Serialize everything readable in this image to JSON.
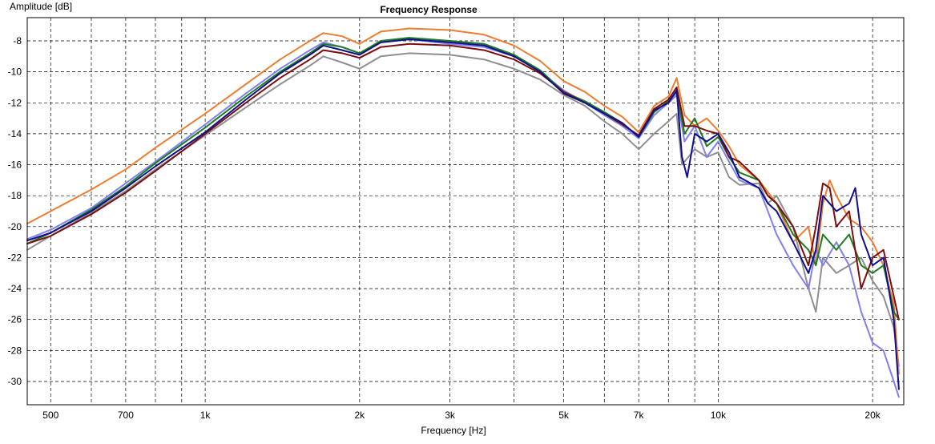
{
  "chart_data": {
    "type": "line",
    "title": "Frequency Response",
    "xlabel": "Frequency [Hz]",
    "ylabel": "Amplitude [dB]",
    "x_scale": "log",
    "xlim": [
      450,
      23000
    ],
    "ylim": [
      -31.5,
      -6.5
    ],
    "x_ticks": [
      {
        "value": 500,
        "label": "500"
      },
      {
        "value": 700,
        "label": "700"
      },
      {
        "value": 1000,
        "label": "1k"
      },
      {
        "value": 2000,
        "label": "2k"
      },
      {
        "value": 3000,
        "label": "3k"
      },
      {
        "value": 5000,
        "label": "5k"
      },
      {
        "value": 7000,
        "label": "7k"
      },
      {
        "value": 10000,
        "label": "10k"
      },
      {
        "value": 20000,
        "label": "20k"
      }
    ],
    "x_grid": [
      500,
      600,
      700,
      800,
      900,
      1000,
      2000,
      3000,
      4000,
      5000,
      6000,
      7000,
      8000,
      9000,
      10000,
      20000
    ],
    "y_ticks": [
      -8,
      -10,
      -12,
      -14,
      -16,
      -18,
      -20,
      -22,
      -24,
      -26,
      -28,
      -30
    ],
    "grid": true,
    "series": [
      {
        "color": "#8f8f8f",
        "points": [
          [
            450,
            -21.5
          ],
          [
            500,
            -20.6
          ],
          [
            600,
            -19.1
          ],
          [
            700,
            -17.7
          ],
          [
            800,
            -16.3
          ],
          [
            1000,
            -14.1
          ],
          [
            1200,
            -12.3
          ],
          [
            1400,
            -10.8
          ],
          [
            1600,
            -9.6
          ],
          [
            1700,
            -9.0
          ],
          [
            1850,
            -9.4
          ],
          [
            2000,
            -9.8
          ],
          [
            2200,
            -9.0
          ],
          [
            2500,
            -8.8
          ],
          [
            3000,
            -8.9
          ],
          [
            3500,
            -9.2
          ],
          [
            4000,
            -9.8
          ],
          [
            4500,
            -10.5
          ],
          [
            5000,
            -11.5
          ],
          [
            5500,
            -12.2
          ],
          [
            6000,
            -13.2
          ],
          [
            6500,
            -14.0
          ],
          [
            7000,
            -15.0
          ],
          [
            7500,
            -14.0
          ],
          [
            8000,
            -13.2
          ],
          [
            8300,
            -12.7
          ],
          [
            8500,
            -16.0
          ],
          [
            9000,
            -15.0
          ],
          [
            9500,
            -15.5
          ],
          [
            10000,
            -15.2
          ],
          [
            10500,
            -16.8
          ],
          [
            11000,
            -17.3
          ],
          [
            12000,
            -17.2
          ],
          [
            12500,
            -18.5
          ],
          [
            13000,
            -18.0
          ],
          [
            14000,
            -20.0
          ],
          [
            15000,
            -24.0
          ],
          [
            15500,
            -25.5
          ],
          [
            16000,
            -22.0
          ],
          [
            17000,
            -23.0
          ],
          [
            18000,
            -22.5
          ],
          [
            19000,
            -22.0
          ],
          [
            20000,
            -23.5
          ],
          [
            21000,
            -24.5
          ],
          [
            22000,
            -26.5
          ],
          [
            22500,
            -29.0
          ]
        ]
      },
      {
        "color": "#ed7d31",
        "points": [
          [
            450,
            -19.8
          ],
          [
            500,
            -19.0
          ],
          [
            600,
            -17.6
          ],
          [
            700,
            -16.3
          ],
          [
            800,
            -14.9
          ],
          [
            1000,
            -12.7
          ],
          [
            1200,
            -10.8
          ],
          [
            1400,
            -9.2
          ],
          [
            1600,
            -8.0
          ],
          [
            1700,
            -7.5
          ],
          [
            1850,
            -7.7
          ],
          [
            2000,
            -8.2
          ],
          [
            2200,
            -7.4
          ],
          [
            2500,
            -7.2
          ],
          [
            3000,
            -7.3
          ],
          [
            3500,
            -7.6
          ],
          [
            4000,
            -8.3
          ],
          [
            4500,
            -9.3
          ],
          [
            5000,
            -10.6
          ],
          [
            5500,
            -11.3
          ],
          [
            6000,
            -12.2
          ],
          [
            6500,
            -12.9
          ],
          [
            7000,
            -13.9
          ],
          [
            7500,
            -12.2
          ],
          [
            8000,
            -11.6
          ],
          [
            8300,
            -10.4
          ],
          [
            8600,
            -12.8
          ],
          [
            9000,
            -13.5
          ],
          [
            9500,
            -13.0
          ],
          [
            10000,
            -13.8
          ],
          [
            10500,
            -14.8
          ],
          [
            11000,
            -16.0
          ],
          [
            12000,
            -17.0
          ],
          [
            13000,
            -18.5
          ],
          [
            14000,
            -21.0
          ],
          [
            15000,
            -20.0
          ],
          [
            15500,
            -22.5
          ],
          [
            16000,
            -18.5
          ],
          [
            16500,
            -17.0
          ],
          [
            17000,
            -18.0
          ],
          [
            18000,
            -19.5
          ],
          [
            19000,
            -20.0
          ],
          [
            20000,
            -21.0
          ],
          [
            21000,
            -22.5
          ],
          [
            22000,
            -25.0
          ],
          [
            22500,
            -29.5
          ]
        ]
      },
      {
        "color": "#8080ee",
        "points": [
          [
            450,
            -20.8
          ],
          [
            500,
            -20.2
          ],
          [
            600,
            -18.8
          ],
          [
            700,
            -17.2
          ],
          [
            800,
            -15.8
          ],
          [
            1000,
            -13.4
          ],
          [
            1200,
            -11.4
          ],
          [
            1400,
            -9.8
          ],
          [
            1600,
            -8.6
          ],
          [
            1700,
            -8.1
          ],
          [
            1850,
            -8.4
          ],
          [
            2000,
            -8.8
          ],
          [
            2200,
            -8.1
          ],
          [
            2500,
            -7.9
          ],
          [
            3000,
            -8.2
          ],
          [
            3500,
            -8.4
          ],
          [
            4000,
            -9.0
          ],
          [
            4500,
            -10.0
          ],
          [
            5000,
            -11.2
          ],
          [
            5500,
            -12.0
          ],
          [
            6000,
            -12.8
          ],
          [
            6500,
            -13.5
          ],
          [
            7000,
            -14.3
          ],
          [
            7500,
            -12.8
          ],
          [
            8000,
            -12.0
          ],
          [
            8300,
            -11.5
          ],
          [
            8600,
            -14.5
          ],
          [
            9000,
            -13.5
          ],
          [
            9500,
            -15.5
          ],
          [
            10000,
            -14.5
          ],
          [
            10500,
            -15.8
          ],
          [
            11000,
            -17.0
          ],
          [
            12000,
            -17.5
          ],
          [
            12500,
            -19.0
          ],
          [
            13000,
            -20.5
          ],
          [
            14000,
            -22.5
          ],
          [
            15000,
            -24.0
          ],
          [
            15500,
            -21.5
          ],
          [
            16000,
            -22.5
          ],
          [
            17000,
            -21.0
          ],
          [
            18000,
            -22.5
          ],
          [
            19000,
            -25.5
          ],
          [
            20000,
            -27.5
          ],
          [
            21000,
            -28.0
          ],
          [
            22000,
            -30.0
          ],
          [
            22500,
            -31.0
          ]
        ]
      },
      {
        "color": "#1e7b1e",
        "points": [
          [
            450,
            -21.1
          ],
          [
            500,
            -20.4
          ],
          [
            600,
            -18.9
          ],
          [
            700,
            -17.4
          ],
          [
            800,
            -15.9
          ],
          [
            1000,
            -13.6
          ],
          [
            1200,
            -11.6
          ],
          [
            1400,
            -10.0
          ],
          [
            1600,
            -8.8
          ],
          [
            1700,
            -8.2
          ],
          [
            1850,
            -8.4
          ],
          [
            2000,
            -8.8
          ],
          [
            2200,
            -8.0
          ],
          [
            2500,
            -7.8
          ],
          [
            3000,
            -8.0
          ],
          [
            3500,
            -8.2
          ],
          [
            4000,
            -8.9
          ],
          [
            4500,
            -9.9
          ],
          [
            5000,
            -11.3
          ],
          [
            5500,
            -11.9
          ],
          [
            6000,
            -12.6
          ],
          [
            6500,
            -13.3
          ],
          [
            7000,
            -14.2
          ],
          [
            7500,
            -12.6
          ],
          [
            8000,
            -11.9
          ],
          [
            8300,
            -11.3
          ],
          [
            8600,
            -14.0
          ],
          [
            9000,
            -13.0
          ],
          [
            9500,
            -14.8
          ],
          [
            10000,
            -14.2
          ],
          [
            10500,
            -15.5
          ],
          [
            11000,
            -16.5
          ],
          [
            12000,
            -17.0
          ],
          [
            12500,
            -18.0
          ],
          [
            13000,
            -18.5
          ],
          [
            14000,
            -20.5
          ],
          [
            15000,
            -21.5
          ],
          [
            15500,
            -22.5
          ],
          [
            16000,
            -20.5
          ],
          [
            17000,
            -21.5
          ],
          [
            18000,
            -20.5
          ],
          [
            19000,
            -22.5
          ],
          [
            20000,
            -23.0
          ],
          [
            21000,
            -22.5
          ],
          [
            22000,
            -25.5
          ],
          [
            22500,
            -26.0
          ]
        ]
      },
      {
        "color": "#7b0f0f",
        "points": [
          [
            450,
            -21.1
          ],
          [
            500,
            -20.6
          ],
          [
            600,
            -19.2
          ],
          [
            700,
            -17.8
          ],
          [
            800,
            -16.4
          ],
          [
            1000,
            -14.0
          ],
          [
            1200,
            -12.0
          ],
          [
            1400,
            -10.4
          ],
          [
            1600,
            -9.2
          ],
          [
            1700,
            -8.6
          ],
          [
            1850,
            -8.8
          ],
          [
            2000,
            -9.1
          ],
          [
            2200,
            -8.4
          ],
          [
            2500,
            -8.2
          ],
          [
            3000,
            -8.3
          ],
          [
            3500,
            -8.6
          ],
          [
            4000,
            -9.2
          ],
          [
            4500,
            -10.1
          ],
          [
            5000,
            -11.3
          ],
          [
            5500,
            -12.0
          ],
          [
            6000,
            -12.7
          ],
          [
            6500,
            -13.4
          ],
          [
            7000,
            -14.1
          ],
          [
            7500,
            -12.4
          ],
          [
            8000,
            -11.8
          ],
          [
            8300,
            -11.0
          ],
          [
            8600,
            -13.5
          ],
          [
            9000,
            -13.5
          ],
          [
            9500,
            -13.8
          ],
          [
            10000,
            -14.0
          ],
          [
            10500,
            -15.5
          ],
          [
            11000,
            -15.8
          ],
          [
            12000,
            -17.0
          ],
          [
            12500,
            -18.0
          ],
          [
            13000,
            -18.5
          ],
          [
            14000,
            -20.0
          ],
          [
            15000,
            -22.5
          ],
          [
            15500,
            -20.0
          ],
          [
            16000,
            -17.2
          ],
          [
            16500,
            -17.5
          ],
          [
            17000,
            -20.0
          ],
          [
            18000,
            -19.0
          ],
          [
            19000,
            -24.0
          ],
          [
            20000,
            -22.0
          ],
          [
            21000,
            -21.5
          ],
          [
            22000,
            -24.5
          ],
          [
            22500,
            -26.0
          ]
        ]
      },
      {
        "color": "#0f0f8c",
        "points": [
          [
            450,
            -20.9
          ],
          [
            500,
            -20.4
          ],
          [
            600,
            -19.0
          ],
          [
            700,
            -17.5
          ],
          [
            800,
            -16.1
          ],
          [
            1000,
            -13.9
          ],
          [
            1200,
            -11.8
          ],
          [
            1400,
            -10.1
          ],
          [
            1600,
            -8.9
          ],
          [
            1700,
            -8.3
          ],
          [
            1850,
            -8.6
          ],
          [
            2000,
            -8.9
          ],
          [
            2200,
            -8.1
          ],
          [
            2500,
            -7.9
          ],
          [
            3000,
            -8.1
          ],
          [
            3500,
            -8.3
          ],
          [
            4000,
            -9.0
          ],
          [
            4500,
            -10.0
          ],
          [
            5000,
            -11.4
          ],
          [
            5500,
            -12.0
          ],
          [
            6000,
            -12.7
          ],
          [
            6500,
            -13.3
          ],
          [
            7000,
            -14.2
          ],
          [
            7500,
            -12.5
          ],
          [
            8000,
            -12.0
          ],
          [
            8300,
            -11.2
          ],
          [
            8500,
            -15.5
          ],
          [
            8700,
            -16.8
          ],
          [
            9000,
            -14.0
          ],
          [
            9500,
            -14.5
          ],
          [
            10000,
            -14.0
          ],
          [
            10500,
            -15.2
          ],
          [
            11000,
            -16.8
          ],
          [
            12000,
            -17.5
          ],
          [
            12500,
            -18.5
          ],
          [
            13000,
            -19.0
          ],
          [
            14000,
            -21.0
          ],
          [
            15000,
            -23.0
          ],
          [
            15500,
            -21.5
          ],
          [
            16000,
            -18.0
          ],
          [
            17000,
            -19.0
          ],
          [
            18000,
            -18.5
          ],
          [
            18500,
            -17.5
          ],
          [
            19000,
            -20.5
          ],
          [
            20000,
            -22.5
          ],
          [
            21000,
            -22.0
          ],
          [
            22000,
            -26.0
          ],
          [
            22500,
            -30.5
          ]
        ]
      }
    ]
  }
}
